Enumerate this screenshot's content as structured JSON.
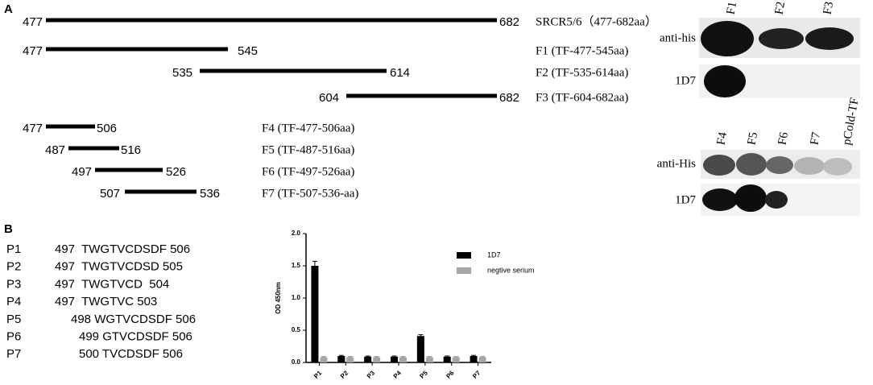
{
  "panel_labels": [
    "A",
    "B"
  ],
  "fragments": [
    {
      "start": 477,
      "end": 682,
      "name": "SRCR5/6（477-682aa）"
    },
    {
      "start": 477,
      "end": 545,
      "name": "F1 (TF-477-545aa)"
    },
    {
      "start": 535,
      "end": 614,
      "name": "F2 (TF-535-614aa)"
    },
    {
      "start": 604,
      "end": 682,
      "name": "F3 (TF-604-682aa)"
    },
    {
      "start": 477,
      "end": 506,
      "name": "F4 (TF-477-506aa)"
    },
    {
      "start": 487,
      "end": 516,
      "name": "F5 (TF-487-516aa)"
    },
    {
      "start": 497,
      "end": 526,
      "name": "F6 (TF-497-526aa)"
    },
    {
      "start": 507,
      "end": 536,
      "name": "F7 (TF-507-536-aa)"
    }
  ],
  "blot_top": {
    "lanes": [
      "F1",
      "F2",
      "F3"
    ],
    "rows": [
      "anti-his",
      "1D7"
    ]
  },
  "blot_bottom": {
    "lanes": [
      "F4",
      "F5",
      "F6",
      "F7",
      "pCold-TF"
    ],
    "rows": [
      "anti-His",
      "1D7"
    ]
  },
  "peptides": [
    [
      "P1",
      "497  TWGTVCDSDF 506"
    ],
    [
      "P2",
      "497  TWGTVCDSD 505"
    ],
    [
      "P3",
      "497  TWGTVCD  504"
    ],
    [
      "P4",
      "497  TWGTVC 503"
    ],
    [
      "P5",
      "498 WGTVCDSDF 506"
    ],
    [
      "P6",
      "499 GTVCDSDF 506"
    ],
    [
      "P7",
      "500 TVCDSDF 506"
    ]
  ],
  "chart_data": {
    "type": "bar",
    "ylabel": "OD 450nm",
    "categories": [
      "P1",
      "P2",
      "P3",
      "P4",
      "P5",
      "P6",
      "P7"
    ],
    "series": [
      {
        "name": "1D7",
        "color": "#000000",
        "values": [
          1.5,
          0.1,
          0.09,
          0.09,
          0.41,
          0.09,
          0.1
        ],
        "errors": [
          0.07,
          0.01,
          0.01,
          0.01,
          0.02,
          0.01,
          0.01
        ]
      },
      {
        "name": "negtive serium",
        "color": "#a6a6a6",
        "values": [
          0.08,
          0.08,
          0.08,
          0.08,
          0.08,
          0.08,
          0.08
        ],
        "errors": [
          0.01,
          0.01,
          0.01,
          0.01,
          0.01,
          0.01,
          0.01
        ]
      }
    ],
    "ylim": [
      0,
      2.0
    ],
    "yticks": [
      {
        "value": 0,
        "label": "0.0"
      },
      {
        "value": 0.5,
        "label": "0.5"
      },
      {
        "value": 1.0,
        "label": "1.0"
      },
      {
        "value": 1.5,
        "label": "1.5"
      },
      {
        "value": 2.0,
        "label": "2.0"
      }
    ]
  }
}
